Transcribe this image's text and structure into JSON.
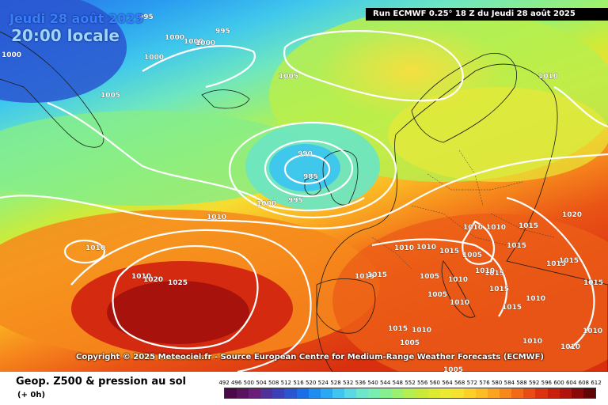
{
  "header": {
    "date": "Jeudi 28 août 2025",
    "time": "20:00 locale",
    "run_info": "Run ECMWF 0.25° 18 Z du Jeudi 28 août 2025"
  },
  "copyright": "Copyright © 2025 Meteociel.fr - Source European Centre for Medium-Range Weather Forecasts (ECMWF)",
  "legend": {
    "title": "Geop. Z500 & pression au sol",
    "subtitle": "(+ 0h)",
    "scale_values": [
      "492",
      "496",
      "500",
      "504",
      "508",
      "512",
      "516",
      "520",
      "524",
      "528",
      "532",
      "536",
      "540",
      "544",
      "548",
      "552",
      "556",
      "560",
      "564",
      "568",
      "572",
      "576",
      "580",
      "584",
      "588",
      "592",
      "596",
      "600",
      "604",
      "608",
      "612"
    ],
    "scale_colors": [
      "#4a0a4a",
      "#5a145f",
      "#6a1e7a",
      "#52309a",
      "#3a40b8",
      "#2a55d0",
      "#1a6ee6",
      "#1f8cf0",
      "#2aa8f2",
      "#40c4f0",
      "#5ad8e6",
      "#6ee6cc",
      "#78eeb0",
      "#86f090",
      "#9cf070",
      "#b4ee50",
      "#caea3a",
      "#dcea30",
      "#ecea30",
      "#f6e030",
      "#fcd028",
      "#fcbc24",
      "#faa420",
      "#f6881c",
      "#f06a18",
      "#e84e14",
      "#dc3210",
      "#c8200e",
      "#b0140c",
      "#8a0a0a",
      "#600606"
    ]
  },
  "isobars": [
    {
      "value": "995"
    },
    {
      "value": "995"
    },
    {
      "value": "1000"
    },
    {
      "value": "1000"
    },
    {
      "value": "1000"
    },
    {
      "value": "1000"
    },
    {
      "value": "1000"
    },
    {
      "value": "1005"
    },
    {
      "value": "1005"
    },
    {
      "value": "990"
    },
    {
      "value": "985"
    },
    {
      "value": "1000"
    },
    {
      "value": "995"
    },
    {
      "value": "1010"
    },
    {
      "value": "1010"
    },
    {
      "value": "1010"
    },
    {
      "value": "1020"
    },
    {
      "value": "1025"
    },
    {
      "value": "1015"
    },
    {
      "value": "1005"
    },
    {
      "value": "1010"
    },
    {
      "value": "1015"
    },
    {
      "value": "1020"
    },
    {
      "value": "1010"
    },
    {
      "value": "1010"
    },
    {
      "value": "1015"
    },
    {
      "value": "1010"
    },
    {
      "value": "1015"
    },
    {
      "value": "1015"
    },
    {
      "value": "1015"
    },
    {
      "value": "1015"
    },
    {
      "value": "1010"
    },
    {
      "value": "1005"
    },
    {
      "value": "1010"
    },
    {
      "value": "1005"
    },
    {
      "value": "1010"
    },
    {
      "value": "1010"
    },
    {
      "value": "1010"
    },
    {
      "value": "1010"
    },
    {
      "value": "1015"
    },
    {
      "value": "1005"
    },
    {
      "value": "1015"
    },
    {
      "value": "1010"
    },
    {
      "value": "1015"
    },
    {
      "value": "1010"
    },
    {
      "value": "1010"
    },
    {
      "value": "1005"
    },
    {
      "value": "1015"
    },
    {
      "value": "1015"
    }
  ]
}
